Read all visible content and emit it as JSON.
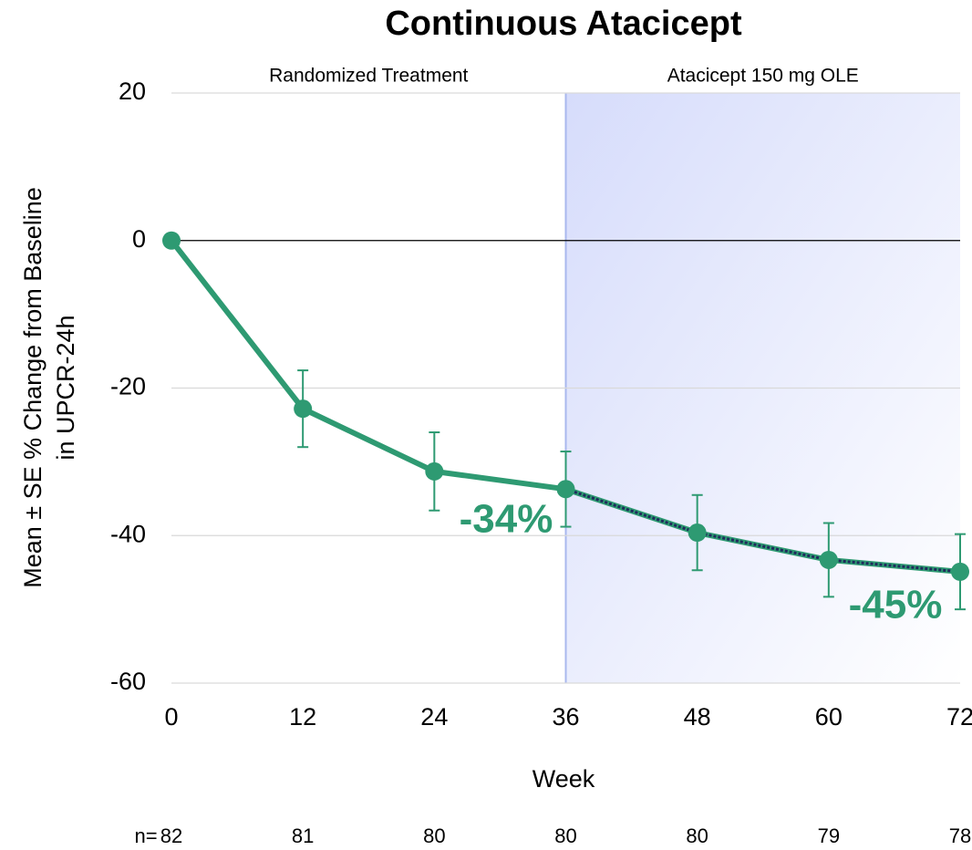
{
  "chart_data": {
    "type": "line",
    "title": "Continuous Atacicept",
    "xlabel": "Week",
    "ylabel": [
      "Mean ± SE % Change from Baseline",
      "in UPCR-24h"
    ],
    "x": [
      0,
      12,
      24,
      36,
      48,
      60,
      72
    ],
    "series": [
      {
        "name": "Continuous Atacicept",
        "color": "#2e9a72",
        "values": [
          0,
          -22.8,
          -31.3,
          -33.7,
          -39.6,
          -43.3,
          -44.9
        ],
        "errors": [
          0,
          5.2,
          5.3,
          5.1,
          5.1,
          5.0,
          5.1
        ]
      }
    ],
    "extension_color": "#1f2a5c",
    "xlim": [
      0,
      72
    ],
    "xticks": [
      0,
      12,
      24,
      36,
      48,
      60,
      72
    ],
    "ylim": [
      -60,
      20
    ],
    "yticks": [
      -60,
      -40,
      -20,
      0,
      20
    ],
    "grid": true,
    "regions": [
      {
        "label": "Randomized Treatment",
        "x_start": 0,
        "x_end": 36
      },
      {
        "label": "Atacicept 150 mg OLE",
        "x_start": 36,
        "x_end": 72,
        "shaded": true
      }
    ],
    "annotations": [
      "-34%",
      "-45%"
    ],
    "n_label": "n=",
    "n": [
      82,
      81,
      80,
      80,
      80,
      79,
      78
    ]
  }
}
